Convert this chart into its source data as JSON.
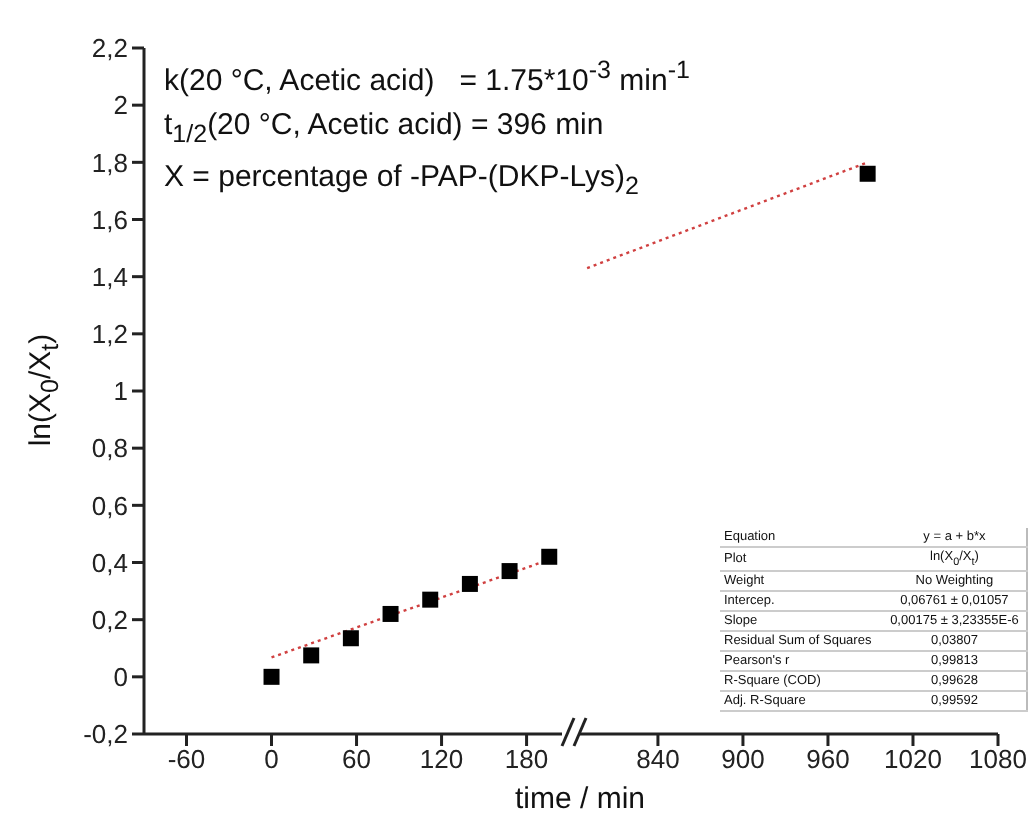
{
  "chart_data": [
    {
      "type": "scatter",
      "ylabel": "ln(X$_{0}$/X$_{t}$)",
      "xlim": [
        -90,
        205
      ],
      "xticks": [
        -60,
        0,
        60,
        120,
        180
      ],
      "ylim": [
        -0.2,
        2.2
      ],
      "yticks": [
        {
          "value": -0.2,
          "label": "-0,2"
        },
        0,
        {
          "value": 0.2,
          "label": "0,2"
        },
        {
          "value": 0.4,
          "label": "0,4"
        },
        {
          "value": 0.6,
          "label": "0,6"
        },
        {
          "value": 0.8,
          "label": "0,8"
        },
        1,
        {
          "value": 1.2,
          "label": "1,2"
        },
        {
          "value": 1.4,
          "label": "1,4"
        },
        {
          "value": 1.6,
          "label": "1,6"
        },
        {
          "value": 1.8,
          "label": "1,8"
        },
        2,
        {
          "value": 2.2,
          "label": "2,2"
        }
      ],
      "annotations": [
        "k(20 °C, Acetic acid)   = 1.75*10$^{-3}$ min$^{-1}$",
        "t$_{1/2}$(20 °C, Acetic acid) = 396 min",
        "X = percentage of -PAP-(DKP-Lys)$_{2}$"
      ],
      "series": [
        {
          "marker": "square",
          "color": "#000000",
          "x": [
            0,
            28,
            56,
            84,
            112,
            140,
            168,
            196
          ],
          "values": [
            0,
            0.075,
            0.135,
            0.22,
            0.27,
            0.325,
            0.37,
            0.42
          ]
        },
        {
          "type": "line",
          "line_style": "dotted",
          "color": "#d04040",
          "x": [
            0,
            196
          ],
          "values": [
            0.068,
            0.41
          ]
        }
      ]
    },
    {
      "type": "scatter",
      "xlabel": "time / min",
      "xlim": [
        785,
        1080
      ],
      "xticks": [
        840,
        900,
        960,
        1020,
        1080
      ],
      "ylim": [
        -0.2,
        2.2
      ],
      "tick_labels": "x",
      "annotations": [
        "Equation",
        "y = a + b*x",
        "Plot",
        "ln(X$_{0}$/X$_{t}$)",
        "Weight",
        "No Weighting",
        "Intercep.",
        "0,06761 ± 0,01057",
        "Slope",
        "0,00175 ± 3,23355E-6",
        "Residual Sum of Squares",
        "0,03807",
        "Pearson's r",
        "0,99813",
        "R-Square (COD)",
        "0,99628",
        "Adj. R-Square",
        "0,99592"
      ],
      "series": [
        {
          "marker": "square",
          "color": "#000000",
          "x": [
            988
          ],
          "values": [
            1.76
          ]
        },
        {
          "type": "line",
          "line_style": "dotted",
          "color": "#d04040",
          "x": [
            790,
            988
          ],
          "values": [
            1.43,
            1.8
          ]
        }
      ]
    }
  ]
}
